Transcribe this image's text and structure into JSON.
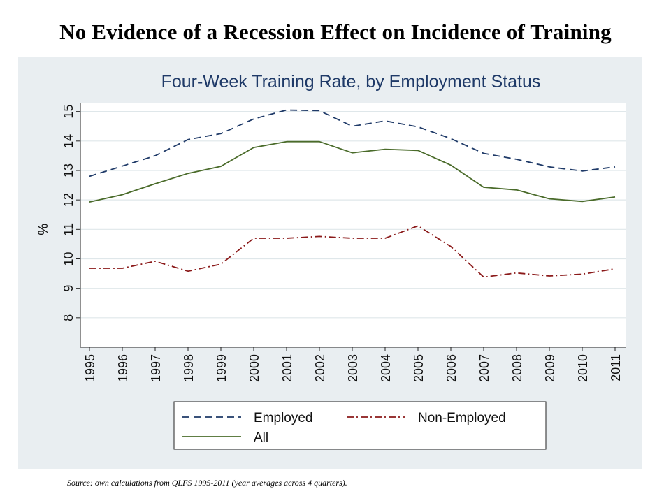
{
  "slide": {
    "title": "No Evidence of a Recession Effect on Incidence of Training",
    "source": "Source: own calculations from QLFS 1995-2011 (year averages across 4 quarters)."
  },
  "chart_data": {
    "type": "line",
    "title": "Four-Week Training Rate, by Employment Status",
    "xlabel": "",
    "ylabel": "%",
    "x": [
      "1995",
      "1996",
      "1997",
      "1998",
      "1999",
      "2000",
      "2001",
      "2002",
      "2003",
      "2004",
      "2005",
      "2006",
      "2007",
      "2008",
      "2009",
      "2010",
      "2011"
    ],
    "yticks": [
      "8",
      "9",
      "10",
      "11",
      "12",
      "13",
      "14",
      "15"
    ],
    "ylim": [
      7.0,
      15.3
    ],
    "grid": true,
    "legend_position": "bottom",
    "series": [
      {
        "name": "Employed",
        "style": "dashed",
        "color": "#1f3a68",
        "values": [
          12.8,
          13.15,
          13.5,
          14.05,
          14.25,
          14.75,
          15.05,
          15.03,
          14.5,
          14.68,
          14.48,
          14.08,
          13.58,
          13.38,
          13.12,
          12.98,
          13.12
        ]
      },
      {
        "name": "Non-Employed",
        "style": "dash-dot",
        "color": "#8b1a1a",
        "values": [
          9.68,
          9.68,
          9.92,
          9.58,
          9.82,
          10.7,
          10.7,
          10.76,
          10.7,
          10.7,
          11.12,
          10.42,
          9.38,
          9.52,
          9.42,
          9.48,
          9.66
        ]
      },
      {
        "name": "All",
        "style": "solid",
        "color": "#4a6b2a",
        "values": [
          11.93,
          12.18,
          12.55,
          12.9,
          13.14,
          13.78,
          13.98,
          13.98,
          13.6,
          13.72,
          13.68,
          13.18,
          12.43,
          12.34,
          12.04,
          11.95,
          12.1
        ]
      }
    ]
  }
}
